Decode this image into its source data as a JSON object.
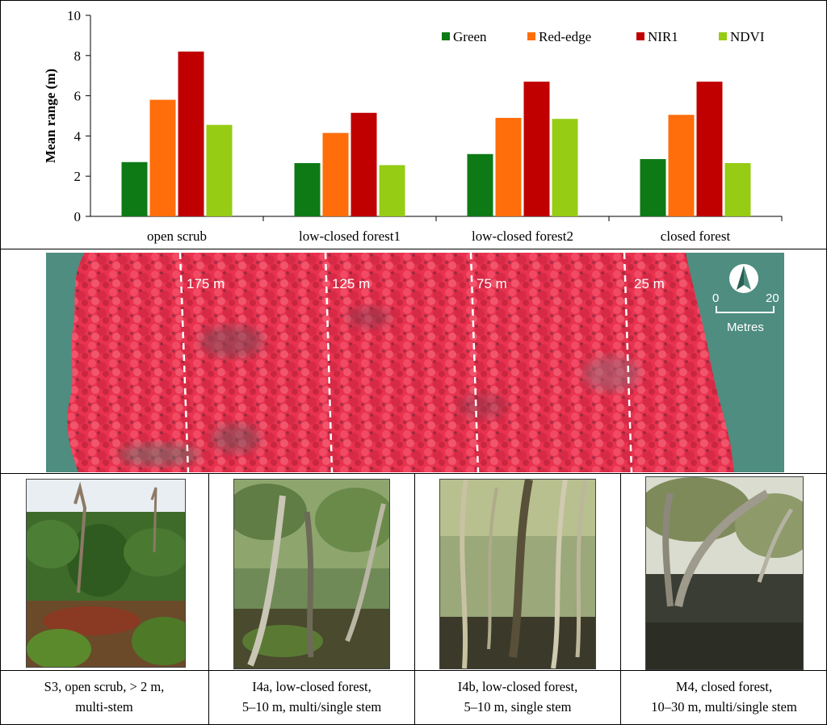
{
  "chart_data": {
    "type": "bar",
    "ylabel": "Mean range (m)",
    "xlabel": "",
    "ylim": [
      0,
      10
    ],
    "yticks": [
      0,
      2,
      4,
      6,
      8,
      10
    ],
    "grid": false,
    "legend_position": "top-right",
    "categories": [
      "open scrub",
      "low-closed forest1",
      "low-closed forest2",
      "closed forest"
    ],
    "series": [
      {
        "name": "Green",
        "color": "#0e7a16",
        "values": [
          2.7,
          2.65,
          3.1,
          2.85
        ]
      },
      {
        "name": "Red-edge",
        "color": "#ff6e0a",
        "values": [
          5.8,
          4.15,
          4.9,
          5.05
        ]
      },
      {
        "name": "NIR1",
        "color": "#c00000",
        "values": [
          8.2,
          5.15,
          6.7,
          6.7
        ]
      },
      {
        "name": "NDVI",
        "color": "#96cc14",
        "values": [
          4.55,
          2.55,
          4.85,
          2.65
        ]
      }
    ]
  },
  "aerial": {
    "distance_labels": [
      "175 m",
      "125 m",
      "75 m",
      "25 m"
    ],
    "scale_min": "0",
    "scale_max": "20",
    "scale_unit": "Metres",
    "north_arrow": "north-arrow-icon",
    "canopy_color": "#e8324f",
    "water_color": "#4e8d80"
  },
  "sites": [
    {
      "line1": "S3, open scrub, > 2 m,",
      "line2": "multi-stem",
      "photo": "open-scrub-photo"
    },
    {
      "line1": "I4a, low-closed forest,",
      "line2": "5–10 m, multi/single stem",
      "photo": "low-closed-forest-photo"
    },
    {
      "line1": "I4b, low-closed forest,",
      "line2": "5–10 m, single stem",
      "photo": "low-closed-forest-single-stem-photo"
    },
    {
      "line1": "M4, closed forest,",
      "line2": "10–30 m, multi/single stem",
      "photo": "closed-forest-photo"
    }
  ]
}
